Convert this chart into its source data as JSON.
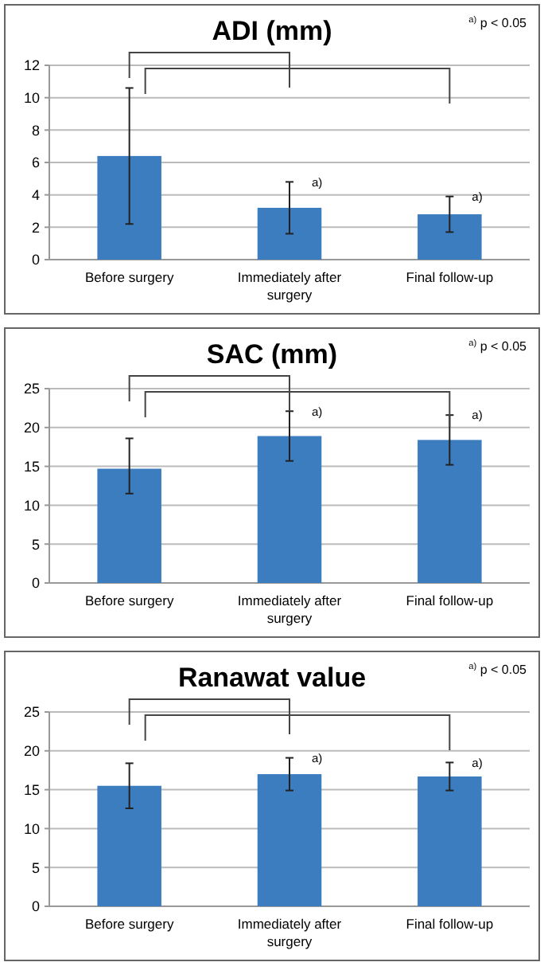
{
  "chart_data": [
    {
      "type": "bar",
      "title": "ADI (mm)",
      "categories": [
        "Before surgery",
        "Immediately after surgery",
        "Final follow-up"
      ],
      "values": [
        6.4,
        3.2,
        2.8
      ],
      "errors": [
        [
          2.2,
          10.6
        ],
        [
          1.6,
          4.8
        ],
        [
          1.7,
          3.9
        ]
      ],
      "color": "#3c7dbf",
      "ylim": [
        0,
        12
      ],
      "yticks": [
        0,
        2,
        4,
        6,
        8,
        10,
        12
      ],
      "grid": "y",
      "annotations": [
        "$^{a)}$ p < 0.05",
        {
          "text": "a)",
          "x": "Immediately after surgery",
          "y": 4.8
        },
        {
          "text": "a)",
          "x": "Final follow-up",
          "y": 3.9
        }
      ]
    },
    {
      "type": "bar",
      "title": "SAC (mm)",
      "categories": [
        "Before surgery",
        "Immediately after surgery",
        "Final follow-up"
      ],
      "values": [
        14.7,
        18.9,
        18.4
      ],
      "errors": [
        [
          11.5,
          18.6
        ],
        [
          15.7,
          22.1
        ],
        [
          15.2,
          21.6
        ]
      ],
      "color": "#3c7dbf",
      "ylim": [
        0,
        25
      ],
      "yticks": [
        0,
        5,
        10,
        15,
        20,
        25
      ],
      "grid": "y",
      "annotations": [
        "$^{a)}$ p < 0.05",
        {
          "text": "a)",
          "x": "Immediately after surgery",
          "y": 22.1
        },
        {
          "text": "a)",
          "x": "Final follow-up",
          "y": 21.6
        }
      ]
    },
    {
      "type": "bar",
      "title": "Ranawat value",
      "categories": [
        "Before surgery",
        "Immediately after surgery",
        "Final follow-up"
      ],
      "values": [
        15.5,
        17.0,
        16.7
      ],
      "errors": [
        [
          12.6,
          18.4
        ],
        [
          14.9,
          19.1
        ],
        [
          14.9,
          18.5
        ]
      ],
      "color": "#3c7dbf",
      "ylim": [
        0,
        25
      ],
      "yticks": [
        0,
        5,
        10,
        15,
        20,
        25
      ],
      "grid": "y",
      "annotations": [
        "$^{a)}$ p < 0.05",
        {
          "text": "a)",
          "x": "Immediately after surgery",
          "y": 19.1
        },
        {
          "text": "a)",
          "x": "Final follow-up",
          "y": 18.5
        }
      ]
    }
  ]
}
